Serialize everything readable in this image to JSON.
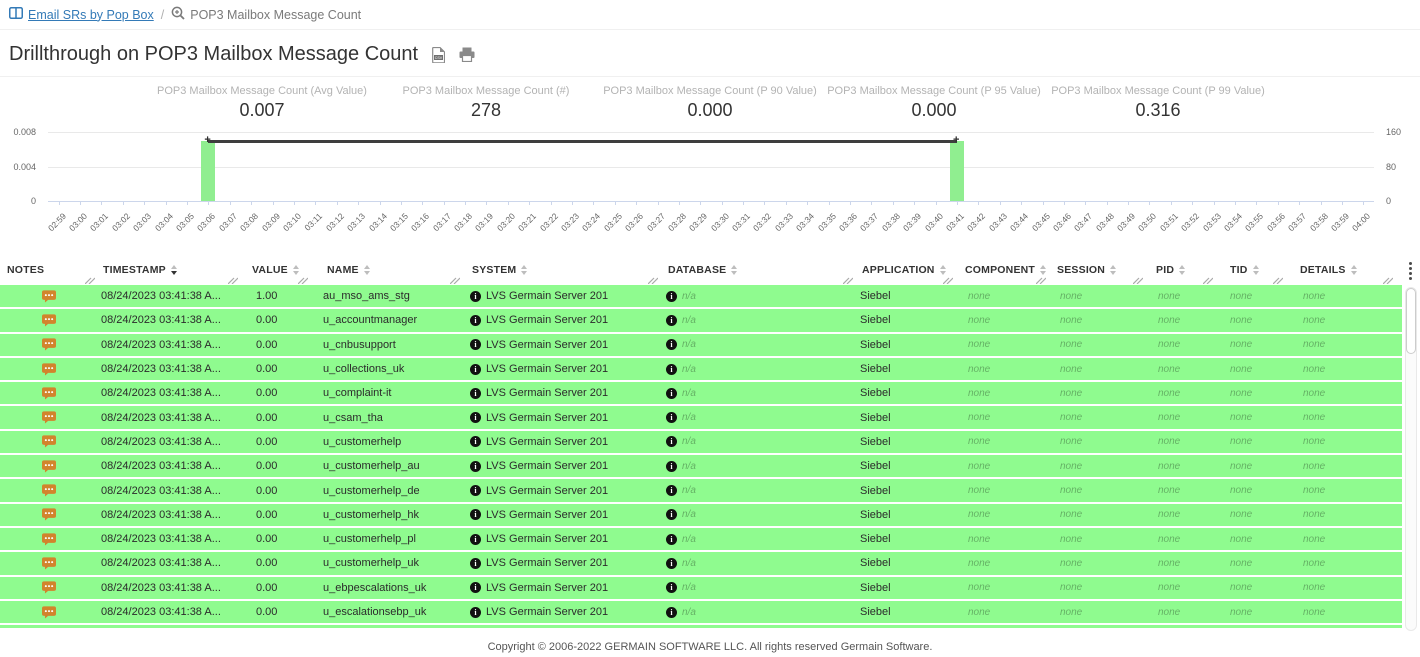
{
  "breadcrumb": {
    "dashboard_label": "Email SRs by Pop Box",
    "separator": "/",
    "current_label": "POP3 Mailbox Message Count"
  },
  "page": {
    "title": "Drillthrough on POP3 Mailbox Message Count"
  },
  "icons": {
    "breadcrumb_dashboard": "columns-icon",
    "breadcrumb_current": "zoom-in-icon",
    "export": "csv-file-icon",
    "print": "printer-icon",
    "notes": "comment-dots-icon",
    "info": "info-circle-icon",
    "header_menu": "kebab-menu-icon"
  },
  "stats": [
    {
      "label": "POP3 Mailbox Message Count (Avg Value)",
      "value": "0.007"
    },
    {
      "label": "POP3 Mailbox Message Count (#)",
      "value": "278"
    },
    {
      "label": "POP3 Mailbox Message Count (P 90 Value)",
      "value": "0.000"
    },
    {
      "label": "POP3 Mailbox Message Count (P 95 Value)",
      "value": "0.000"
    },
    {
      "label": "POP3 Mailbox Message Count (P 99 Value)",
      "value": "0.316"
    }
  ],
  "chart_data": {
    "type": "bar",
    "title": "",
    "xlabel": "",
    "ylabel": "",
    "x": [
      "02:59",
      "03:00",
      "03:01",
      "03:02",
      "03:03",
      "03:04",
      "03:05",
      "03:06",
      "03:07",
      "03:08",
      "03:09",
      "03:10",
      "03:11",
      "03:12",
      "03:13",
      "03:14",
      "03:15",
      "03:16",
      "03:17",
      "03:18",
      "03:19",
      "03:20",
      "03:21",
      "03:22",
      "03:23",
      "03:24",
      "03:25",
      "03:26",
      "03:27",
      "03:28",
      "03:29",
      "03:30",
      "03:31",
      "03:32",
      "03:33",
      "03:34",
      "03:35",
      "03:36",
      "03:37",
      "03:38",
      "03:39",
      "03:40",
      "03:41",
      "03:42",
      "03:43",
      "03:44",
      "03:45",
      "03:46",
      "03:47",
      "03:48",
      "03:49",
      "03:50",
      "03:51",
      "03:52",
      "03:53",
      "03:54",
      "03:55",
      "03:56",
      "03:57",
      "03:58",
      "03:59",
      "04:00"
    ],
    "series": [
      {
        "name": "POP3 Mailbox Message Count (#)",
        "type": "bar",
        "axis": "right",
        "color": "#90ee90",
        "data": [
          {
            "x": "03:06",
            "y": 139
          },
          {
            "x": "03:41",
            "y": 139
          }
        ]
      },
      {
        "name": "POP3 Mailbox Message Count (Avg Value)",
        "type": "line",
        "axis": "left",
        "color": "#3e3e3e",
        "data": [
          {
            "x": "03:06",
            "y": 0.007
          },
          {
            "x": "03:41",
            "y": 0.007
          }
        ]
      }
    ],
    "left_axis": {
      "min": 0,
      "max": 0.008,
      "ticks": [
        "0.008",
        "0.004",
        "0"
      ]
    },
    "right_axis": {
      "min": 0,
      "max": 160,
      "ticks": [
        "160",
        "80",
        "0"
      ]
    },
    "grid": true,
    "legend": false
  },
  "table": {
    "columns": [
      {
        "label": "NOTES",
        "sortable": false,
        "sorted": null
      },
      {
        "label": "TIMESTAMP",
        "sortable": true,
        "sorted": "desc"
      },
      {
        "label": "VALUE",
        "sortable": true,
        "sorted": null
      },
      {
        "label": "NAME",
        "sortable": true,
        "sorted": null
      },
      {
        "label": "SYSTEM",
        "sortable": true,
        "sorted": null
      },
      {
        "label": "DATABASE",
        "sortable": true,
        "sorted": null
      },
      {
        "label": "APPLICATION",
        "sortable": true,
        "sorted": null
      },
      {
        "label": "COMPONENT",
        "sortable": true,
        "sorted": null
      },
      {
        "label": "SESSION",
        "sortable": true,
        "sorted": null
      },
      {
        "label": "PID",
        "sortable": true,
        "sorted": null
      },
      {
        "label": "TID",
        "sortable": true,
        "sorted": null
      },
      {
        "label": "DETAILS",
        "sortable": true,
        "sorted": null
      }
    ],
    "rows": [
      {
        "timestamp": "08/24/2023 03:41:38 A...",
        "value": "1.00",
        "name": "au_mso_ams_stg",
        "system": "LVS Germain Server 201",
        "database": "n/a",
        "application": "Siebel",
        "component": "none",
        "session": "none",
        "pid": "none",
        "tid": "none",
        "details": "none"
      },
      {
        "timestamp": "08/24/2023 03:41:38 A...",
        "value": "0.00",
        "name": "u_accountmanager",
        "system": "LVS Germain Server 201",
        "database": "n/a",
        "application": "Siebel",
        "component": "none",
        "session": "none",
        "pid": "none",
        "tid": "none",
        "details": "none"
      },
      {
        "timestamp": "08/24/2023 03:41:38 A...",
        "value": "0.00",
        "name": "u_cnbusupport",
        "system": "LVS Germain Server 201",
        "database": "n/a",
        "application": "Siebel",
        "component": "none",
        "session": "none",
        "pid": "none",
        "tid": "none",
        "details": "none"
      },
      {
        "timestamp": "08/24/2023 03:41:38 A...",
        "value": "0.00",
        "name": "u_collections_uk",
        "system": "LVS Germain Server 201",
        "database": "n/a",
        "application": "Siebel",
        "component": "none",
        "session": "none",
        "pid": "none",
        "tid": "none",
        "details": "none"
      },
      {
        "timestamp": "08/24/2023 03:41:38 A...",
        "value": "0.00",
        "name": "u_complaint-it",
        "system": "LVS Germain Server 201",
        "database": "n/a",
        "application": "Siebel",
        "component": "none",
        "session": "none",
        "pid": "none",
        "tid": "none",
        "details": "none"
      },
      {
        "timestamp": "08/24/2023 03:41:38 A...",
        "value": "0.00",
        "name": "u_csam_tha",
        "system": "LVS Germain Server 201",
        "database": "n/a",
        "application": "Siebel",
        "component": "none",
        "session": "none",
        "pid": "none",
        "tid": "none",
        "details": "none"
      },
      {
        "timestamp": "08/24/2023 03:41:38 A...",
        "value": "0.00",
        "name": "u_customerhelp",
        "system": "LVS Germain Server 201",
        "database": "n/a",
        "application": "Siebel",
        "component": "none",
        "session": "none",
        "pid": "none",
        "tid": "none",
        "details": "none"
      },
      {
        "timestamp": "08/24/2023 03:41:38 A...",
        "value": "0.00",
        "name": "u_customerhelp_au",
        "system": "LVS Germain Server 201",
        "database": "n/a",
        "application": "Siebel",
        "component": "none",
        "session": "none",
        "pid": "none",
        "tid": "none",
        "details": "none"
      },
      {
        "timestamp": "08/24/2023 03:41:38 A...",
        "value": "0.00",
        "name": "u_customerhelp_de",
        "system": "LVS Germain Server 201",
        "database": "n/a",
        "application": "Siebel",
        "component": "none",
        "session": "none",
        "pid": "none",
        "tid": "none",
        "details": "none"
      },
      {
        "timestamp": "08/24/2023 03:41:38 A...",
        "value": "0.00",
        "name": "u_customerhelp_hk",
        "system": "LVS Germain Server 201",
        "database": "n/a",
        "application": "Siebel",
        "component": "none",
        "session": "none",
        "pid": "none",
        "tid": "none",
        "details": "none"
      },
      {
        "timestamp": "08/24/2023 03:41:38 A...",
        "value": "0.00",
        "name": "u_customerhelp_pl",
        "system": "LVS Germain Server 201",
        "database": "n/a",
        "application": "Siebel",
        "component": "none",
        "session": "none",
        "pid": "none",
        "tid": "none",
        "details": "none"
      },
      {
        "timestamp": "08/24/2023 03:41:38 A...",
        "value": "0.00",
        "name": "u_customerhelp_uk",
        "system": "LVS Germain Server 201",
        "database": "n/a",
        "application": "Siebel",
        "component": "none",
        "session": "none",
        "pid": "none",
        "tid": "none",
        "details": "none"
      },
      {
        "timestamp": "08/24/2023 03:41:38 A...",
        "value": "0.00",
        "name": "u_ebpescalations_uk",
        "system": "LVS Germain Server 201",
        "database": "n/a",
        "application": "Siebel",
        "component": "none",
        "session": "none",
        "pid": "none",
        "tid": "none",
        "details": "none"
      },
      {
        "timestamp": "08/24/2023 03:41:38 A...",
        "value": "0.00",
        "name": "u_escalationsebp_uk",
        "system": "LVS Germain Server 201",
        "database": "n/a",
        "application": "Siebel",
        "component": "none",
        "session": "none",
        "pid": "none",
        "tid": "none",
        "details": "none"
      }
    ]
  },
  "footer": {
    "copyright": "Copyright © 2006-2022 GERMAIN SOFTWARE LLC. All rights reserved Germain Software."
  }
}
